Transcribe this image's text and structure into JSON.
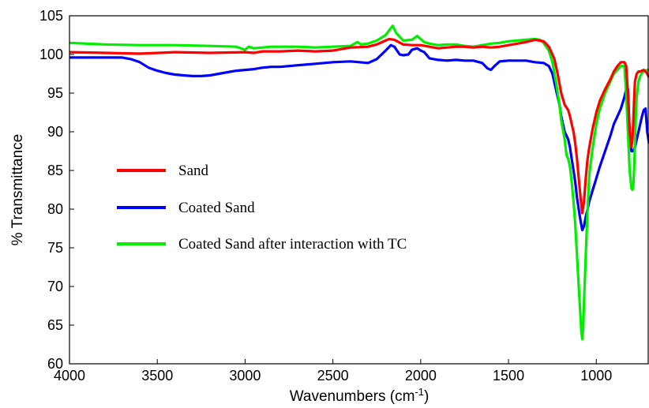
{
  "chart_data": {
    "type": "line",
    "title": "",
    "xlabel": "Wavenumbers (cm",
    "xlabel_sup": "-1",
    "xlabel_suffix": ")",
    "ylabel": "% Transmittance",
    "xlim": [
      4000,
      700
    ],
    "ylim": [
      60,
      105
    ],
    "x_reversed": true,
    "grid": false,
    "legend_position": "center-left",
    "x_ticks": [
      4000,
      3500,
      3000,
      2500,
      2000,
      1500,
      1000
    ],
    "y_ticks": [
      60,
      65,
      70,
      75,
      80,
      85,
      90,
      95,
      100,
      105
    ],
    "series": [
      {
        "name": "Sand",
        "color": "#ff0000",
        "x": [
          4000,
          3800,
          3600,
          3400,
          3200,
          3000,
          2950,
          2900,
          2800,
          2700,
          2600,
          2500,
          2400,
          2300,
          2250,
          2200,
          2180,
          2150,
          2100,
          2050,
          2000,
          1950,
          1900,
          1850,
          1800,
          1750,
          1700,
          1650,
          1600,
          1550,
          1500,
          1450,
          1400,
          1350,
          1300,
          1270,
          1240,
          1220,
          1200,
          1180,
          1160,
          1150,
          1140,
          1130,
          1120,
          1110,
          1100,
          1090,
          1080,
          1070,
          1060,
          1050,
          1040,
          1020,
          1000,
          980,
          950,
          920,
          900,
          880,
          860,
          840,
          830,
          820,
          810,
          800,
          795,
          790,
          785,
          780,
          775,
          770,
          760,
          750,
          740,
          730,
          720,
          710,
          700
        ],
        "y": [
          100.3,
          100.2,
          100.1,
          100.3,
          100.2,
          100.3,
          100.2,
          100.4,
          100.4,
          100.5,
          100.4,
          100.5,
          100.9,
          101.0,
          101.3,
          101.8,
          102.0,
          101.9,
          101.3,
          101.2,
          101.2,
          101.0,
          100.8,
          100.9,
          101.0,
          101.0,
          100.9,
          101.0,
          100.9,
          101.0,
          101.2,
          101.4,
          101.6,
          101.9,
          101.7,
          101.0,
          99.5,
          97.5,
          95.0,
          93.5,
          92.8,
          92.0,
          91.0,
          90.0,
          88.5,
          86.5,
          84.0,
          81.5,
          79.5,
          81.0,
          84.0,
          86.5,
          88.0,
          90.5,
          92.5,
          94.0,
          95.5,
          96.8,
          97.8,
          98.5,
          99.0,
          99.0,
          98.5,
          95.0,
          90.0,
          88.0,
          89.0,
          91.0,
          94.0,
          96.5,
          97.0,
          97.5,
          97.8,
          97.8,
          97.9,
          98.0,
          97.8,
          97.5,
          97.0
        ]
      },
      {
        "name": "Coated Sand",
        "color": "#0000ff",
        "x": [
          4000,
          3850,
          3700,
          3650,
          3600,
          3550,
          3500,
          3450,
          3400,
          3350,
          3300,
          3250,
          3200,
          3150,
          3100,
          3050,
          3000,
          2950,
          2900,
          2850,
          2800,
          2700,
          2600,
          2500,
          2400,
          2350,
          2300,
          2250,
          2200,
          2170,
          2150,
          2120,
          2100,
          2070,
          2050,
          2020,
          2000,
          1980,
          1950,
          1900,
          1850,
          1800,
          1750,
          1700,
          1650,
          1620,
          1600,
          1580,
          1550,
          1500,
          1450,
          1400,
          1350,
          1300,
          1270,
          1250,
          1230,
          1210,
          1200,
          1180,
          1170,
          1160,
          1150,
          1140,
          1130,
          1120,
          1110,
          1100,
          1090,
          1080,
          1070,
          1060,
          1050,
          1040,
          1020,
          1000,
          980,
          950,
          920,
          900,
          880,
          860,
          840,
          830,
          820,
          810,
          800,
          790,
          780,
          770,
          760,
          750,
          740,
          730,
          720,
          710,
          700
        ],
        "y": [
          99.6,
          99.6,
          99.6,
          99.4,
          99.0,
          98.3,
          97.9,
          97.6,
          97.4,
          97.3,
          97.2,
          97.2,
          97.3,
          97.5,
          97.7,
          97.9,
          98.0,
          98.1,
          98.3,
          98.4,
          98.4,
          98.6,
          98.8,
          99.0,
          99.1,
          99.0,
          98.9,
          99.4,
          100.5,
          101.2,
          101.0,
          100.0,
          99.9,
          100.0,
          100.6,
          100.8,
          100.5,
          100.3,
          99.5,
          99.3,
          99.2,
          99.3,
          99.2,
          99.2,
          98.9,
          98.2,
          98.0,
          98.5,
          99.1,
          99.2,
          99.2,
          99.2,
          99.0,
          98.9,
          98.5,
          97.5,
          95.5,
          93.5,
          92.0,
          90.0,
          89.5,
          89.0,
          88.0,
          86.5,
          85.0,
          83.5,
          81.5,
          80.0,
          78.5,
          77.3,
          77.8,
          79.0,
          80.0,
          81.0,
          82.5,
          84.0,
          85.5,
          87.5,
          89.5,
          91.0,
          92.0,
          93.0,
          94.5,
          95.5,
          95.5,
          90.0,
          87.5,
          87.5,
          88.0,
          89.0,
          90.0,
          91.0,
          92.0,
          92.8,
          93.0,
          90.0,
          88.5
        ]
      },
      {
        "name": "Coated Sand after interaction with TC",
        "color": "#00ee00",
        "x": [
          4000,
          3800,
          3600,
          3400,
          3200,
          3050,
          3000,
          2980,
          2950,
          2900,
          2850,
          2800,
          2700,
          2600,
          2500,
          2400,
          2360,
          2340,
          2300,
          2250,
          2200,
          2180,
          2160,
          2140,
          2100,
          2050,
          2020,
          2000,
          1980,
          1950,
          1900,
          1850,
          1800,
          1750,
          1700,
          1650,
          1600,
          1550,
          1500,
          1450,
          1400,
          1350,
          1320,
          1300,
          1270,
          1250,
          1230,
          1210,
          1200,
          1180,
          1170,
          1160,
          1150,
          1140,
          1130,
          1120,
          1110,
          1100,
          1090,
          1085,
          1080,
          1075,
          1070,
          1060,
          1050,
          1040,
          1020,
          1000,
          980,
          950,
          920,
          900,
          880,
          860,
          840,
          830,
          820,
          810,
          800,
          795,
          790,
          785,
          780,
          775,
          770,
          760,
          750,
          740,
          730,
          720,
          710,
          700
        ],
        "y": [
          101.5,
          101.3,
          101.2,
          101.2,
          101.1,
          101.0,
          100.6,
          101.0,
          100.8,
          100.9,
          101.0,
          101.0,
          101.0,
          100.9,
          101.0,
          101.1,
          101.6,
          101.3,
          101.4,
          101.8,
          102.5,
          103.1,
          103.7,
          102.8,
          101.8,
          101.9,
          102.4,
          102.0,
          101.6,
          101.4,
          101.2,
          101.3,
          101.3,
          101.1,
          101.0,
          101.2,
          101.4,
          101.5,
          101.7,
          101.8,
          101.9,
          102.0,
          101.9,
          101.5,
          100.5,
          99.0,
          96.5,
          93.5,
          91.5,
          89.0,
          87.0,
          86.5,
          85.5,
          83.5,
          81.0,
          78.0,
          74.0,
          70.0,
          66.0,
          64.0,
          63.2,
          64.5,
          68.0,
          74.0,
          80.0,
          84.5,
          88.0,
          91.0,
          93.0,
          95.0,
          96.5,
          97.5,
          98.0,
          98.5,
          98.5,
          95.0,
          90.0,
          85.0,
          82.7,
          82.5,
          82.8,
          85.0,
          88.5,
          92.0,
          94.5,
          96.5,
          97.2,
          97.6,
          97.8,
          97.9,
          98.0,
          98.0
        ]
      }
    ]
  }
}
